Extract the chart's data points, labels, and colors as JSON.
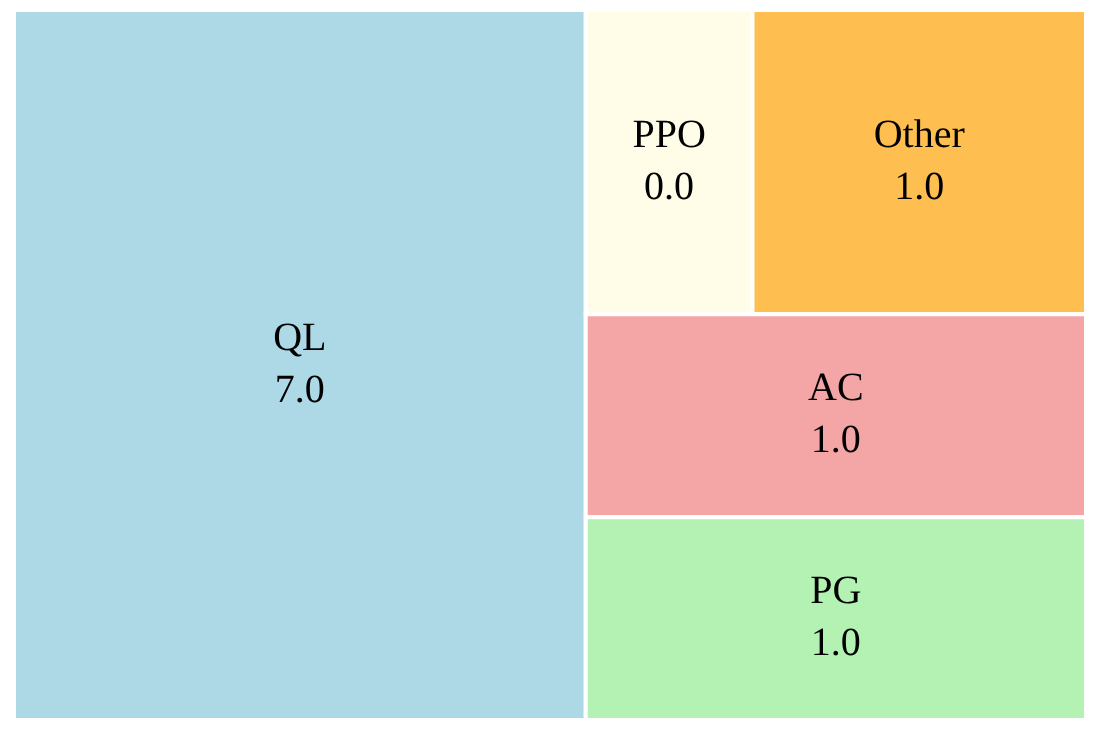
{
  "chart_data": {
    "type": "other",
    "categories": [
      "QL",
      "PPO",
      "Other",
      "AC",
      "PG"
    ],
    "values": [
      7.0,
      0.0,
      1.0,
      1.0,
      1.0
    ],
    "value_labels": [
      "7.0",
      "0.0",
      "1.0",
      "1.0",
      "1.0"
    ],
    "colors": [
      "#add8e6",
      "#fffde8",
      "#ffbf50",
      "#f4a6a6",
      "#b3f2b3"
    ],
    "data_labels": true,
    "legend": false
  }
}
